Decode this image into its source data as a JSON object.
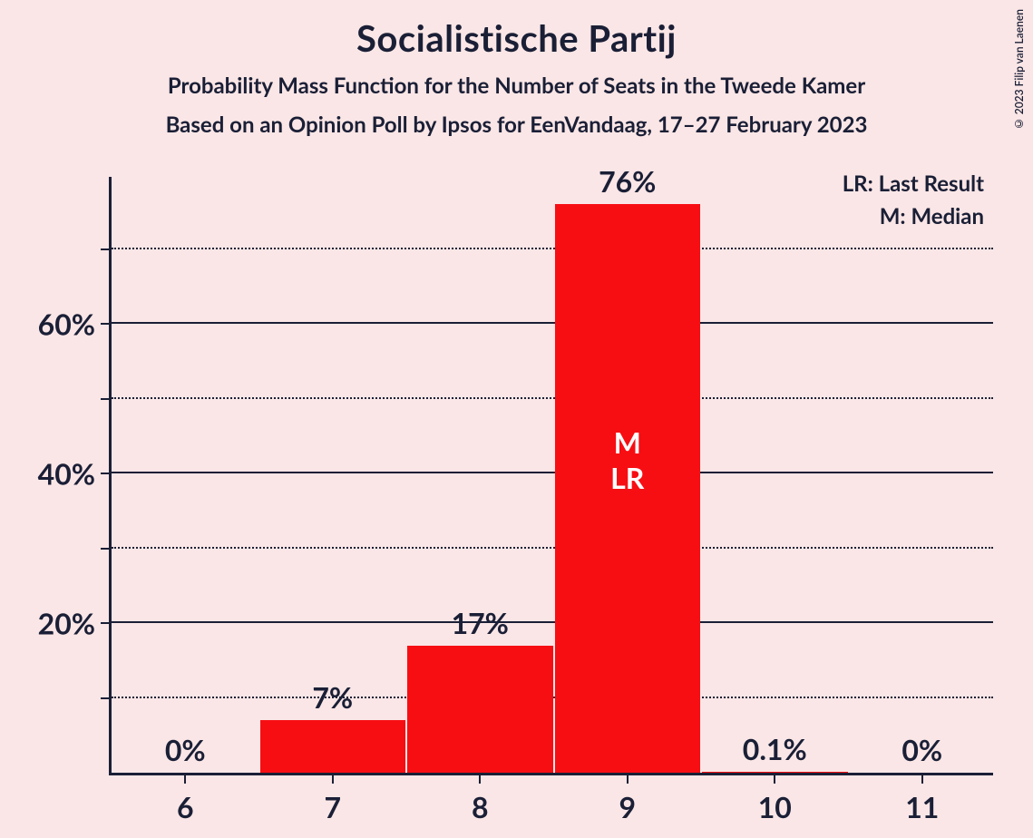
{
  "title": "Socialistische Partij",
  "subtitle1": "Probability Mass Function for the Number of Seats in the Tweede Kamer",
  "subtitle2": "Based on an Opinion Poll by Ipsos for EenVandaag, 17–27 February 2023",
  "copyright": "© 2023 Filip van Laenen",
  "legend": {
    "lr": "LR: Last Result",
    "m": "M: Median"
  },
  "chart": {
    "type": "bar",
    "bar_color": "#f70e13",
    "background_color": "#fae6e6",
    "text_color": "#1a1f36",
    "ylim_max_pct": 80,
    "ytick_major_step": 20,
    "ytick_minor_step": 10,
    "categories": [
      "6",
      "7",
      "8",
      "9",
      "10",
      "11"
    ],
    "values_pct": [
      0,
      7,
      17,
      76,
      0.1,
      0
    ],
    "value_labels": [
      "0%",
      "7%",
      "17%",
      "76%",
      "0.1%",
      "0%"
    ],
    "ylabels": [
      "20%",
      "40%",
      "60%"
    ],
    "annotations": {
      "bar_index": 3,
      "lines": [
        "M",
        "LR"
      ],
      "from_top_pct": 42
    }
  }
}
